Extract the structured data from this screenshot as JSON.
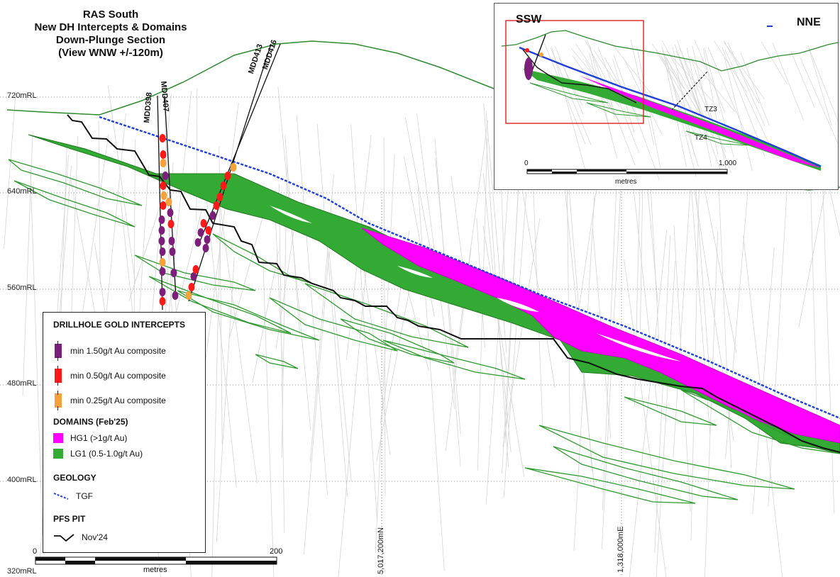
{
  "title": {
    "line1": "RAS South",
    "line2": "New DH Intercepts & Domains",
    "line3": "Down-Plunge Section",
    "line4": "(View WNW +/-120m)"
  },
  "rl_labels": [
    "720mRL",
    "640mRL",
    "560mRL",
    "480mRL",
    "400mRL",
    "320mRL"
  ],
  "coordinate_labels": {
    "northing": "5,017,200mN",
    "easting": "1,318,000mE"
  },
  "drillholes": [
    "MDD398",
    "MDD407",
    "MDD413",
    "MDD416"
  ],
  "legend": {
    "intercepts_heading": "DRILLHOLE GOLD INTERCEPTS",
    "intercepts": [
      {
        "label": "min 1.50g/t Au composite",
        "color": "#7b1f7b"
      },
      {
        "label": "min 0.50g/t Au composite",
        "color": "#ff1a1a"
      },
      {
        "label": "min 0.25g/t Au composite",
        "color": "#f7a13c"
      }
    ],
    "domains_heading": "DOMAINS (Feb'25)",
    "domains": [
      {
        "label": "HG1 (>1g/t Au)",
        "color": "#ff00ff"
      },
      {
        "label": "LG1 (0.5-1.0g/t Au)",
        "color": "#33aa33"
      }
    ],
    "geology_heading": "GEOLOGY",
    "geology": [
      {
        "label": "TGF",
        "color": "#1f3fd9",
        "icon": "dashed-line-icon"
      }
    ],
    "pit_heading": "PFS PIT",
    "pit": [
      {
        "label": "Nov'24",
        "color": "#111111",
        "icon": "solid-line-icon"
      }
    ]
  },
  "scale": {
    "start": "0",
    "end": "200",
    "unit": "metres"
  },
  "inset": {
    "left_dir": "SSW",
    "right_dir": "NNE",
    "labels": [
      "TZ3",
      "TZ4"
    ],
    "scale_start": "0",
    "scale_end": "1,000",
    "scale_unit": "metres"
  },
  "colors": {
    "topography": "#2e8b2e",
    "lg1": "#33aa33",
    "hg1": "#ff00ff",
    "tgf": "#1f3fd9",
    "pit": "#111111",
    "gridline": "#999999",
    "drill_trace": "#cfcfcf"
  }
}
